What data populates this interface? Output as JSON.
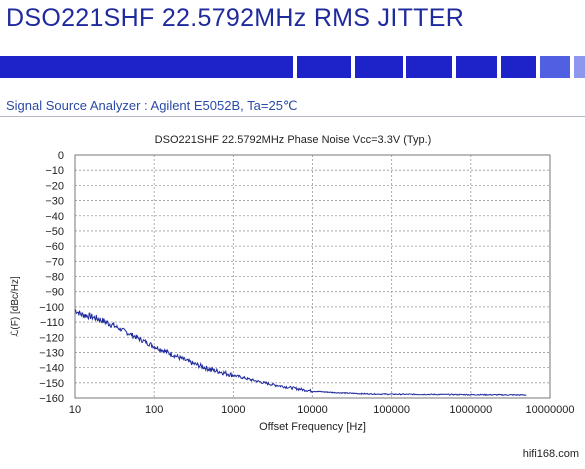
{
  "header": {
    "title": "DSO221SHF 22.5792MHz  RMS  JITTER",
    "subtitle": "Signal Source Analyzer : Agilent E5052B, Ta=25℃",
    "brand_color": "#1f2a9c"
  },
  "watermark": "hifi168.com",
  "chart_data": {
    "type": "line",
    "title": "DSO221SHF  22.5792MHz  Phase Noise  Vcc=3.3V (Typ.)",
    "xlabel": "Offset Frequency [Hz]",
    "ylabel": "ℒ(F) [dBc/Hz]",
    "x_scale": "log",
    "xlim": [
      10,
      10000000
    ],
    "ylim": [
      -160,
      0
    ],
    "x_ticks": [
      "10",
      "100",
      "1000",
      "10000",
      "100000",
      "1000000",
      "10000000"
    ],
    "y_ticks": [
      "0",
      "−10",
      "−20",
      "−30",
      "−40",
      "−50",
      "−60",
      "−70",
      "−80",
      "−90",
      "−100",
      "−110",
      "−120",
      "−130",
      "−140",
      "−150",
      "−160"
    ],
    "grid": true,
    "line_color": "#1f2a9c",
    "series": [
      {
        "x": [
          10,
          12,
          15,
          20,
          30,
          50,
          100,
          200,
          300,
          500,
          1000,
          2000,
          3000,
          5000,
          10000,
          20000,
          50000,
          100000,
          1000000,
          5000000
        ],
        "values": [
          -102,
          -105,
          -106,
          -108,
          -112,
          -118,
          -126,
          -133,
          -137,
          -141,
          -145,
          -149,
          -151,
          -153,
          -155.5,
          -156.5,
          -157.3,
          -157.5,
          -157.8,
          -158
        ]
      }
    ]
  }
}
